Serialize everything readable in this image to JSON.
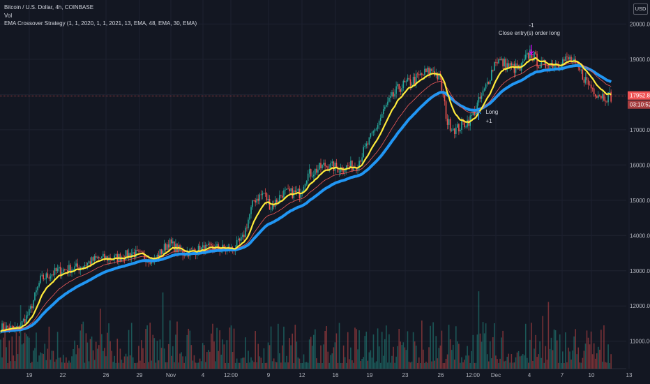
{
  "legend": {
    "symbol": "Bitcoin / U.S. Dollar, 4h, COINBASE",
    "volume": "Vol",
    "strategy": "EMA Crossover Strategy (1, 1, 2020, 1, 1, 2021, 13, EMA, 48, EMA, 30, EMA)"
  },
  "currency": "USD",
  "colors": {
    "background": "#131722",
    "up": "#26a69a",
    "down": "#ef5350",
    "ema_fast": "#ffeb3b",
    "ema_slow": "#2196f3",
    "ema_mid": "#f05a5a",
    "marker": "#d500f9",
    "price_label_bg": "#f05355"
  },
  "chart_data": {
    "type": "candlestick",
    "y_ticks": [
      "11000.00",
      "12000.00",
      "13000.00",
      "14000.00",
      "15000.00",
      "16000.00",
      "17000.00",
      "18000.00",
      "19000.00",
      "20000.00"
    ],
    "ylim": [
      10400,
      20800
    ],
    "x_ticks": [
      "19",
      "22",
      "26",
      "29",
      "Nov",
      "4",
      "12:00",
      "9",
      "12",
      "16",
      "19",
      "23",
      "26",
      "12:00",
      "Dec",
      "4",
      "7",
      "10",
      "13"
    ],
    "last_price": "17952.88",
    "countdown": "03:10:52",
    "anchors": [
      [
        0,
        11400
      ],
      [
        12,
        11350
      ],
      [
        20,
        11800
      ],
      [
        28,
        12750
      ],
      [
        40,
        13000
      ],
      [
        55,
        13100
      ],
      [
        68,
        13350
      ],
      [
        80,
        13350
      ],
      [
        93,
        13500
      ],
      [
        108,
        13300
      ],
      [
        118,
        13800
      ],
      [
        128,
        13500
      ],
      [
        140,
        13600
      ],
      [
        150,
        13650
      ],
      [
        163,
        13600
      ],
      [
        170,
        13900
      ],
      [
        178,
        15000
      ],
      [
        185,
        15200
      ],
      [
        190,
        14800
      ],
      [
        198,
        15200
      ],
      [
        210,
        15200
      ],
      [
        215,
        15700
      ],
      [
        228,
        16000
      ],
      [
        238,
        15900
      ],
      [
        250,
        16000
      ],
      [
        262,
        16900
      ],
      [
        270,
        17600
      ],
      [
        280,
        18200
      ],
      [
        288,
        18350
      ],
      [
        298,
        18600
      ],
      [
        304,
        18700
      ],
      [
        309,
        18400
      ],
      [
        314,
        17200
      ],
      [
        320,
        17000
      ],
      [
        330,
        17300
      ],
      [
        340,
        18100
      ],
      [
        348,
        19000
      ],
      [
        357,
        18800
      ],
      [
        365,
        18700
      ],
      [
        372,
        19200
      ],
      [
        380,
        18800
      ],
      [
        390,
        18900
      ],
      [
        400,
        19000
      ],
      [
        408,
        18600
      ],
      [
        413,
        18300
      ],
      [
        419,
        18050
      ],
      [
        424,
        17950
      ]
    ],
    "annotations": [
      "-1",
      "Close entry(s) order long",
      "Long",
      "+1"
    ]
  }
}
